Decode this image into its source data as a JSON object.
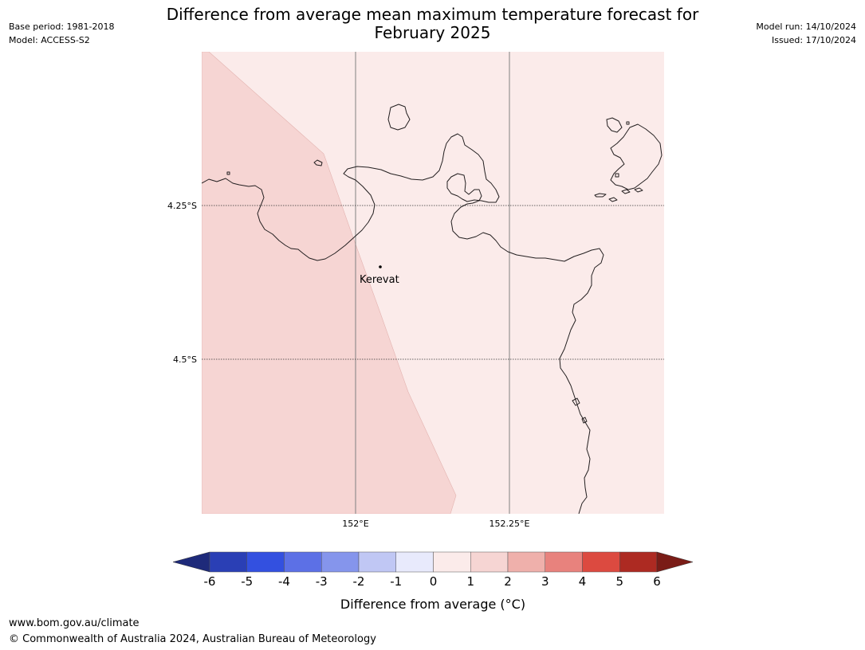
{
  "header": {
    "title_line1": "Difference from average mean maximum temperature forecast for",
    "title_line2": "February 2025",
    "base_period": "Base period: 1981-2018",
    "model": "Model: ACCESS-S2",
    "model_run": "Model run: 14/10/2024",
    "issued": "Issued: 17/10/2024"
  },
  "map": {
    "lat_labels": [
      "4.25°S",
      "4.5°S"
    ],
    "lon_labels": [
      "152°E",
      "152.25°E"
    ],
    "place": "Kerevat",
    "zone_colors": {
      "warm_1_2": "#f6d5d3",
      "warm_0_1": "#fbebea"
    },
    "coast_color": "#231f20"
  },
  "legend": {
    "ticks": [
      "-6",
      "-5",
      "-4",
      "-3",
      "-2",
      "-1",
      "0",
      "1",
      "2",
      "3",
      "4",
      "5",
      "6"
    ],
    "colors": [
      "#1e2a7a",
      "#2a3fb5",
      "#3350e0",
      "#5c70e6",
      "#8595ec",
      "#c0c7f4",
      "#e8eafc",
      "#fbebea",
      "#f6d5d3",
      "#efb0ab",
      "#e8827d",
      "#dc4a40",
      "#ad2a22",
      "#7a1c17"
    ],
    "label": "Difference from average (°C)"
  },
  "footer": {
    "url": "www.bom.gov.au/climate",
    "copyright": "© Commonwealth of Australia 2024, Australian Bureau of Meteorology"
  }
}
